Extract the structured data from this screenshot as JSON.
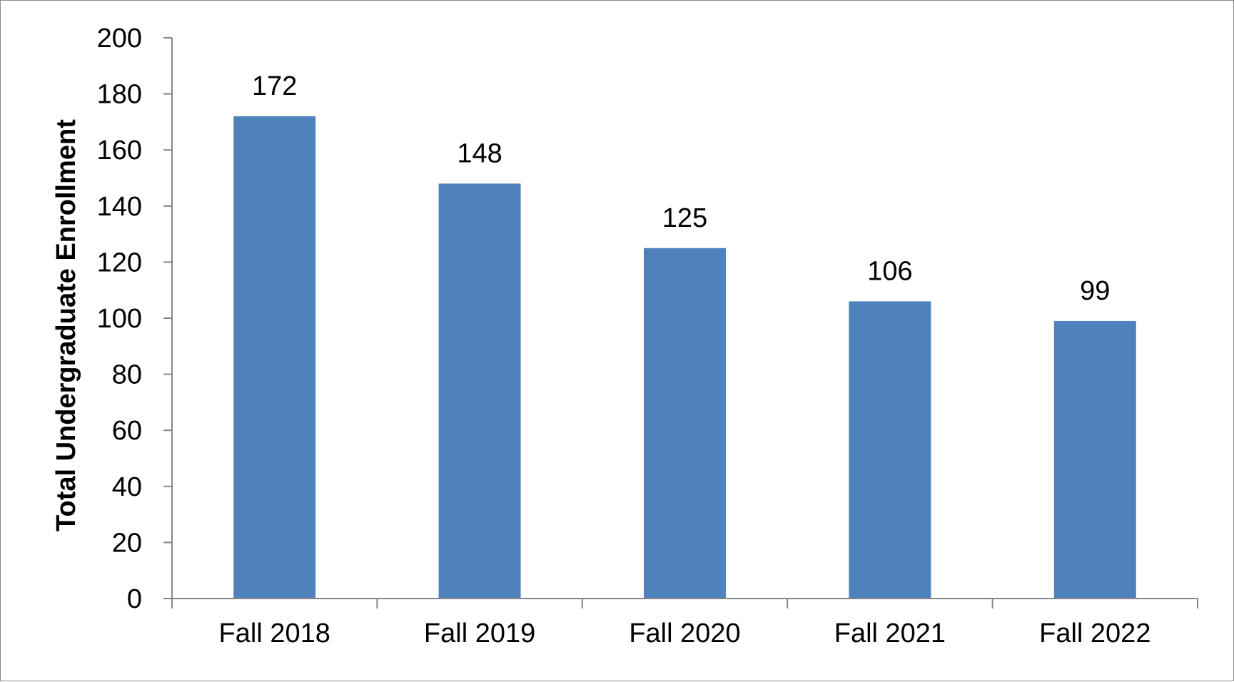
{
  "chart_data": {
    "type": "bar",
    "categories": [
      "Fall 2018",
      "Fall 2019",
      "Fall 2020",
      "Fall 2021",
      "Fall 2022"
    ],
    "values": [
      172,
      148,
      125,
      106,
      99
    ],
    "data_labels": [
      "172",
      "148",
      "125",
      "106",
      "99"
    ],
    "title": "",
    "xlabel": "",
    "ylabel": "Total Undergraduate Enrollment",
    "ylim": [
      0,
      200
    ],
    "yticks": [
      0,
      20,
      40,
      60,
      80,
      100,
      120,
      140,
      160,
      180,
      200
    ],
    "ytick_labels": [
      "0",
      "20",
      "40",
      "60",
      "80",
      "100",
      "120",
      "140",
      "160",
      "180",
      "200"
    ],
    "grid": false,
    "legend": "none",
    "bar_color": "#4F81BD",
    "axis_color": "#868686"
  }
}
